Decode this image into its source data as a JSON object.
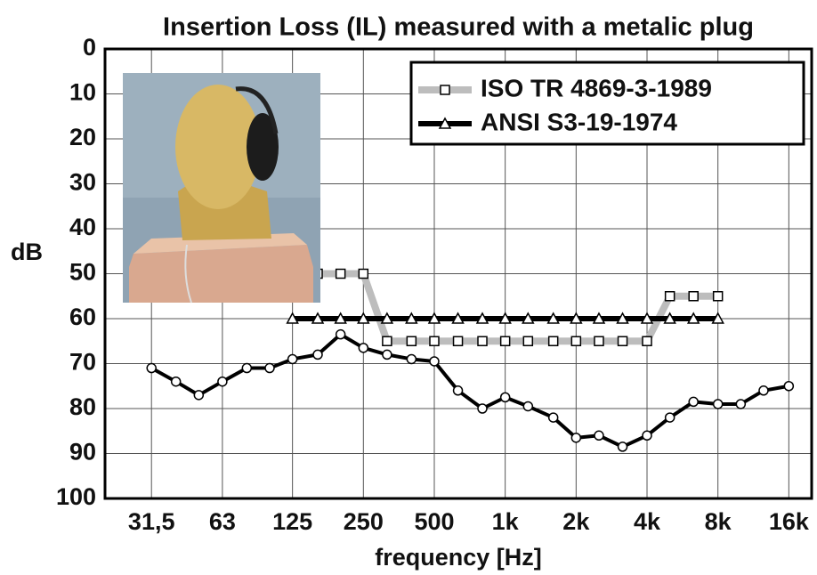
{
  "chart_data": {
    "type": "line",
    "title": "Insertion Loss (IL) measured with a metalic plug",
    "x_label": "frequency [Hz]",
    "y_label": "dB",
    "log_x": true,
    "y_inverted": true,
    "grid": true,
    "legend": "top-right",
    "xlim": [
      20,
      20000
    ],
    "xticks": [
      {
        "value": 31.5,
        "label": "31,5"
      },
      63,
      125,
      250,
      500,
      {
        "value": 1000,
        "label": "1k"
      },
      {
        "value": 2000,
        "label": "2k"
      },
      {
        "value": 4000,
        "label": "4k"
      },
      {
        "value": 8000,
        "label": "8k"
      },
      {
        "value": 16000,
        "label": "16k"
      }
    ],
    "ylim": [
      0,
      100
    ],
    "yticks": [
      0,
      10,
      20,
      30,
      40,
      50,
      60,
      70,
      80,
      90,
      100
    ],
    "series": [
      {
        "name": "ISO TR 4869-3-1989",
        "color": "#bdbdbd",
        "marker": "square",
        "x": [
          125,
          160,
          200,
          250,
          315,
          400,
          500,
          630,
          800,
          1000,
          1250,
          1600,
          2000,
          2500,
          3150,
          4000,
          5000,
          6300,
          8000
        ],
        "values": [
          50,
          50,
          50,
          50,
          65,
          65,
          65,
          65,
          65,
          65,
          65,
          65,
          65,
          65,
          65,
          65,
          55,
          55,
          55
        ]
      },
      {
        "name": "ANSI S3-19-1974",
        "color": "#000000",
        "marker": "triangle",
        "x": [
          125,
          160,
          200,
          250,
          315,
          400,
          500,
          630,
          800,
          1000,
          1250,
          1600,
          2000,
          2500,
          3150,
          4000,
          5000,
          6300,
          8000
        ],
        "values": [
          60,
          60,
          60,
          60,
          60,
          60,
          60,
          60,
          60,
          60,
          60,
          60,
          60,
          60,
          60,
          60,
          60,
          60,
          60
        ]
      },
      {
        "color": "#000000",
        "marker": "circle",
        "x": [
          31.5,
          40,
          50,
          63,
          80,
          100,
          125,
          160,
          200,
          250,
          315,
          400,
          500,
          630,
          800,
          1000,
          1250,
          1600,
          2000,
          2500,
          3150,
          4000,
          5000,
          6300,
          8000,
          10000,
          12500,
          16000
        ],
        "values": [
          71,
          74,
          77,
          74,
          71,
          71,
          69,
          68,
          63.5,
          66.5,
          68,
          69,
          69.5,
          76,
          80,
          77.5,
          79.5,
          82,
          86.5,
          86,
          88.5,
          86,
          82,
          78.5,
          79,
          79,
          76,
          75
        ]
      }
    ]
  }
}
